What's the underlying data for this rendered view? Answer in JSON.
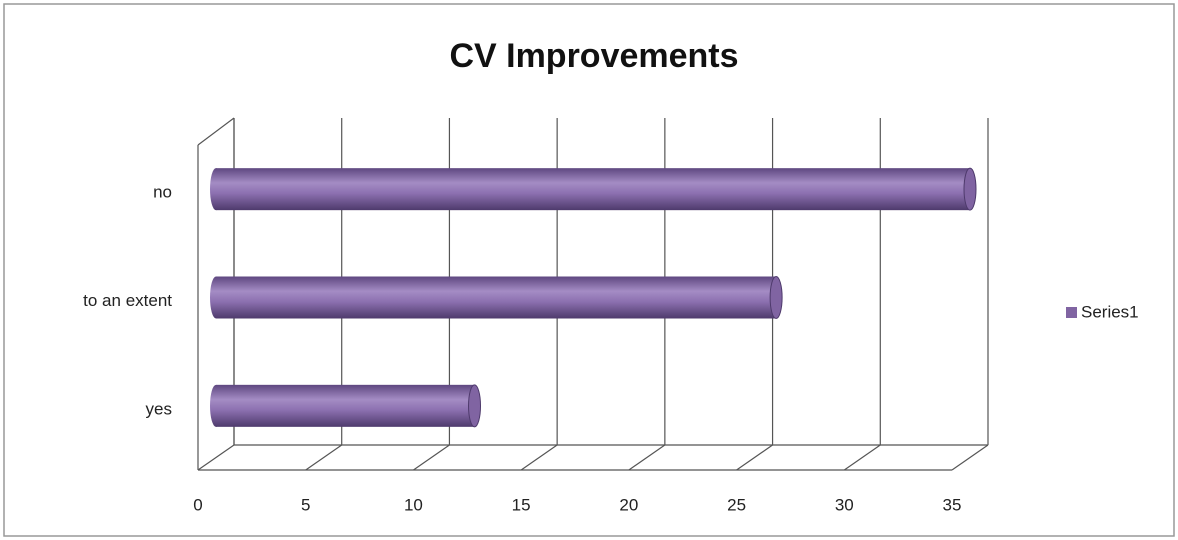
{
  "chart_data": {
    "type": "bar3d_horizontal",
    "title": "CV Improvements",
    "categories": [
      "yes",
      "to an extent",
      "no"
    ],
    "series": [
      {
        "name": "Series1",
        "color": "#8064a2",
        "values": [
          12,
          26,
          35
        ]
      }
    ],
    "xlim": [
      0,
      35
    ],
    "xticks": [
      0,
      5,
      10,
      15,
      20,
      25,
      30,
      35
    ],
    "grid": true,
    "legend": "right"
  }
}
